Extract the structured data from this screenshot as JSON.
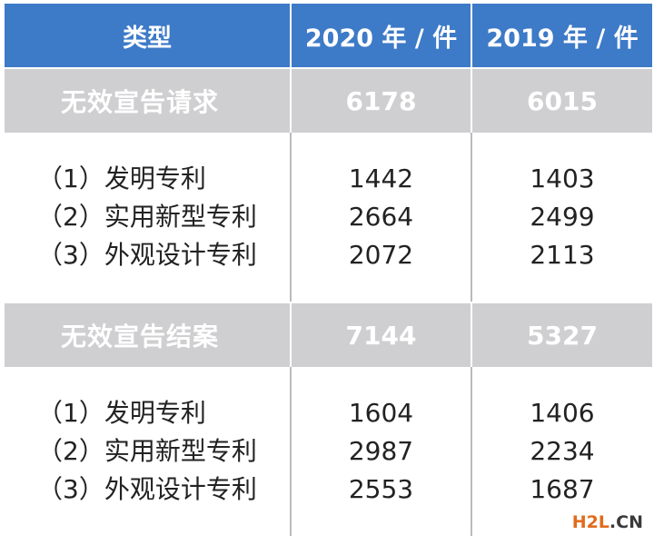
{
  "chart_data": {
    "type": "table",
    "columns": [
      "类型",
      "2020 年 / 件",
      "2019 年 / 件"
    ],
    "sections": [
      {
        "name": "无效宣告请求",
        "total": [
          "6178",
          "6015"
        ],
        "rows": [
          {
            "label": "（1）发明专利",
            "values": [
              "1442",
              "1403"
            ]
          },
          {
            "label": "（2）实用新型专利",
            "values": [
              "2664",
              "2499"
            ]
          },
          {
            "label": "（3）外观设计专利",
            "values": [
              "2072",
              "2113"
            ]
          }
        ]
      },
      {
        "name": "无效宣告结案",
        "total": [
          "7144",
          "5327"
        ],
        "rows": [
          {
            "label": "（1）发明专利",
            "values": [
              "1604",
              "1406"
            ]
          },
          {
            "label": "（2）实用新型专利",
            "values": [
              "2987",
              "2234"
            ]
          },
          {
            "label": "（3）外观设计专利",
            "values": [
              "2553",
              "1687"
            ]
          }
        ]
      }
    ]
  },
  "watermark": {
    "h2l": "H2L",
    "dot": ".",
    "cn": "CN"
  },
  "colors": {
    "header_bg": "#3d7ac7",
    "section_bg": "#cfcfd1",
    "logo_orange": "#e26b1b"
  }
}
